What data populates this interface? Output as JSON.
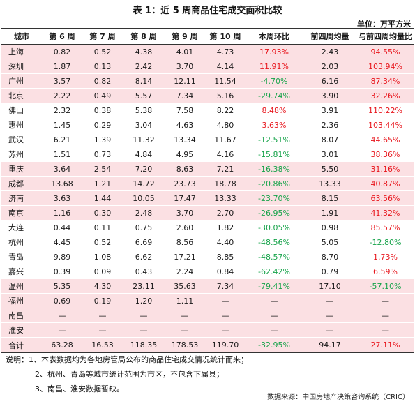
{
  "title": "表 1：近 5 周商品住宅成交面积比较",
  "unit": "单位：万平方米",
  "columns": [
    "城市",
    "第 6 周",
    "第 7 周",
    "第 8 周",
    "第 9 周",
    "第 10 周",
    "本周环比",
    "前四周均量",
    "与前四周均量比"
  ],
  "rows": [
    {
      "city": "上海",
      "w6": "0.82",
      "w7": "0.52",
      "w8": "4.38",
      "w9": "4.01",
      "w10": "4.73",
      "wow": "17.93%",
      "avg": "2.43",
      "vs": "94.55%",
      "wow_color": "#e8161d",
      "vs_color": "#e8161d"
    },
    {
      "city": "深圳",
      "w6": "1.87",
      "w7": "0.13",
      "w8": "2.42",
      "w9": "3.70",
      "w10": "4.14",
      "wow": "11.91%",
      "avg": "2.03",
      "vs": "103.94%",
      "wow_color": "#e8161d",
      "vs_color": "#e8161d"
    },
    {
      "city": "广州",
      "w6": "3.57",
      "w7": "0.82",
      "w8": "8.14",
      "w9": "12.11",
      "w10": "11.54",
      "wow": "-4.70%",
      "avg": "6.16",
      "vs": "87.34%",
      "wow_color": "#16a34a",
      "vs_color": "#e8161d"
    },
    {
      "city": "北京",
      "w6": "2.22",
      "w7": "0.49",
      "w8": "5.57",
      "w9": "7.34",
      "w10": "5.16",
      "wow": "-29.74%",
      "avg": "3.90",
      "vs": "32.26%",
      "wow_color": "#16a34a",
      "vs_color": "#e8161d"
    },
    {
      "city": "佛山",
      "w6": "2.32",
      "w7": "0.38",
      "w8": "5.38",
      "w9": "7.58",
      "w10": "8.22",
      "wow": "8.48%",
      "avg": "3.91",
      "vs": "110.22%",
      "wow_color": "#e8161d",
      "vs_color": "#e8161d"
    },
    {
      "city": "惠州",
      "w6": "1.45",
      "w7": "0.29",
      "w8": "3.04",
      "w9": "4.63",
      "w10": "4.80",
      "wow": "3.63%",
      "avg": "2.36",
      "vs": "103.44%",
      "wow_color": "#e8161d",
      "vs_color": "#e8161d"
    },
    {
      "city": "武汉",
      "w6": "6.21",
      "w7": "1.39",
      "w8": "11.32",
      "w9": "13.34",
      "w10": "11.67",
      "wow": "-12.51%",
      "avg": "8.07",
      "vs": "44.65%",
      "wow_color": "#16a34a",
      "vs_color": "#e8161d"
    },
    {
      "city": "苏州",
      "w6": "1.51",
      "w7": "0.73",
      "w8": "4.84",
      "w9": "4.95",
      "w10": "4.16",
      "wow": "-15.81%",
      "avg": "3.01",
      "vs": "38.36%",
      "wow_color": "#16a34a",
      "vs_color": "#e8161d"
    },
    {
      "city": "重庆",
      "w6": "3.64",
      "w7": "2.54",
      "w8": "7.20",
      "w9": "8.63",
      "w10": "7.21",
      "wow": "-16.38%",
      "avg": "5.50",
      "vs": "31.16%",
      "wow_color": "#16a34a",
      "vs_color": "#e8161d"
    },
    {
      "city": "成都",
      "w6": "13.68",
      "w7": "1.21",
      "w8": "14.72",
      "w9": "23.73",
      "w10": "18.78",
      "wow": "-20.86%",
      "avg": "13.33",
      "vs": "40.87%",
      "wow_color": "#16a34a",
      "vs_color": "#e8161d"
    },
    {
      "city": "济南",
      "w6": "3.63",
      "w7": "1.44",
      "w8": "10.05",
      "w9": "17.47",
      "w10": "13.33",
      "wow": "-23.70%",
      "avg": "8.15",
      "vs": "63.56%",
      "wow_color": "#16a34a",
      "vs_color": "#e8161d"
    },
    {
      "city": "南京",
      "w6": "1.16",
      "w7": "0.30",
      "w8": "2.48",
      "w9": "3.70",
      "w10": "2.70",
      "wow": "-26.95%",
      "avg": "1.91",
      "vs": "41.32%",
      "wow_color": "#16a34a",
      "vs_color": "#e8161d"
    },
    {
      "city": "大连",
      "w6": "0.44",
      "w7": "0.11",
      "w8": "0.75",
      "w9": "2.60",
      "w10": "1.82",
      "wow": "-30.05%",
      "avg": "0.98",
      "vs": "85.57%",
      "wow_color": "#16a34a",
      "vs_color": "#e8161d"
    },
    {
      "city": "杭州",
      "w6": "4.45",
      "w7": "0.52",
      "w8": "6.69",
      "w9": "8.56",
      "w10": "4.40",
      "wow": "-48.56%",
      "avg": "5.05",
      "vs": "-12.80%",
      "wow_color": "#16a34a",
      "vs_color": "#16a34a"
    },
    {
      "city": "青岛",
      "w6": "9.89",
      "w7": "1.08",
      "w8": "6.62",
      "w9": "17.21",
      "w10": "8.85",
      "wow": "-48.57%",
      "avg": "8.70",
      "vs": "1.73%",
      "wow_color": "#16a34a",
      "vs_color": "#e8161d"
    },
    {
      "city": "嘉兴",
      "w6": "0.39",
      "w7": "0.09",
      "w8": "0.43",
      "w9": "2.24",
      "w10": "0.84",
      "wow": "-62.42%",
      "avg": "0.79",
      "vs": "6.59%",
      "wow_color": "#16a34a",
      "vs_color": "#e8161d"
    },
    {
      "city": "温州",
      "w6": "5.35",
      "w7": "4.30",
      "w8": "23.11",
      "w9": "35.63",
      "w10": "7.34",
      "wow": "-79.41%",
      "avg": "17.10",
      "vs": "-57.10%",
      "wow_color": "#16a34a",
      "vs_color": "#16a34a"
    },
    {
      "city": "福州",
      "w6": "0.69",
      "w7": "0.19",
      "w8": "1.20",
      "w9": "1.11",
      "w10": "—",
      "wow": "—",
      "avg": "—",
      "vs": "—",
      "wow_color": "#1a1a1a",
      "vs_color": "#1a1a1a"
    },
    {
      "city": "南昌",
      "w6": "—",
      "w7": "—",
      "w8": "—",
      "w9": "—",
      "w10": "—",
      "wow": "—",
      "avg": "—",
      "vs": "—",
      "wow_color": "#1a1a1a",
      "vs_color": "#1a1a1a"
    },
    {
      "city": "淮安",
      "w6": "—",
      "w7": "—",
      "w8": "—",
      "w9": "—",
      "w10": "—",
      "wow": "—",
      "avg": "—",
      "vs": "—",
      "wow_color": "#1a1a1a",
      "vs_color": "#1a1a1a"
    }
  ],
  "total": {
    "city": "合计",
    "w6": "63.28",
    "w7": "16.53",
    "w8": "118.35",
    "w9": "178.53",
    "w10": "119.70",
    "wow": "-32.95%",
    "avg": "94.17",
    "vs": "27.11%",
    "wow_color": "#16a34a",
    "vs_color": "#e8161d"
  },
  "notes": [
    "说明：1、本表数据均为各地房管局公布的商品住宅成交情况统计而来；",
    "2、杭州、青岛等城市统计范围为市区，不包含下属县；",
    "3、南昌、淮安数据暂缺。"
  ],
  "source": "数据来源：中国房地产决策咨询系统（CRIC）",
  "colors": {
    "positive": "#e8161d",
    "negative": "#16a34a",
    "band": "#fbe0e3"
  }
}
